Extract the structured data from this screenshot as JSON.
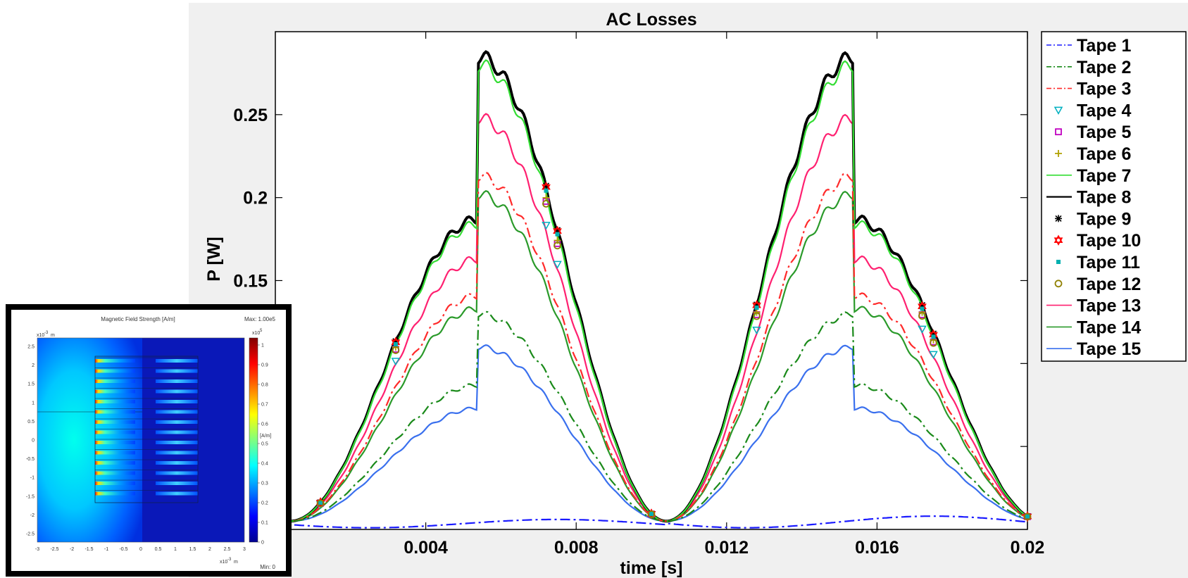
{
  "chart_data": {
    "type": "line",
    "title": "AC Losses",
    "xlabel": "time [s]",
    "ylabel": "P [W]",
    "xlim": [
      0,
      0.02
    ],
    "ylim": [
      0,
      0.3
    ],
    "xticks": [
      0.004,
      0.008,
      0.012,
      0.016,
      0.02
    ],
    "xtick_labels": [
      "0.004",
      "0.008",
      "0.012",
      "0.016",
      "0.02"
    ],
    "yticks": [
      0.15,
      0.2,
      0.25
    ],
    "ytick_labels": [
      "0.15",
      "0.2",
      "0.25"
    ],
    "grid": false,
    "legend": "outside-right",
    "series": [
      {
        "name": "Tape 1",
        "color": "#1a1aff",
        "style": "dashdot",
        "marker": "none",
        "peak1": 0.005,
        "peak2": 0.007
      },
      {
        "name": "Tape 2",
        "color": "#1a8a1a",
        "style": "dashdot",
        "marker": "none",
        "peak1": 0.087,
        "peak2": 0.13
      },
      {
        "name": "Tape 3",
        "color": "#ff2a2a",
        "style": "dashdot",
        "marker": "none",
        "peak1": 0.141,
        "peak2": 0.213
      },
      {
        "name": "Tape 4",
        "color": "#00b0c0",
        "style": "none",
        "marker": "triangle-down",
        "peak1": 0.166,
        "peak2": 0.253
      },
      {
        "name": "Tape 5",
        "color": "#c000c0",
        "style": "none",
        "marker": "square",
        "peak1": 0.178,
        "peak2": 0.273
      },
      {
        "name": "Tape 6",
        "color": "#b0a000",
        "style": "none",
        "marker": "plus",
        "peak1": 0.18,
        "peak2": 0.276
      },
      {
        "name": "Tape 7",
        "color": "#33dd33",
        "style": "solid",
        "marker": "none",
        "peak1": 0.184,
        "peak2": 0.28
      },
      {
        "name": "Tape 8",
        "color": "#000000",
        "style": "solid",
        "marker": "none",
        "peak1": 0.187,
        "peak2": 0.285
      },
      {
        "name": "Tape 9",
        "color": "#000000",
        "style": "none",
        "marker": "star",
        "peak1": 0.186,
        "peak2": 0.286
      },
      {
        "name": "Tape 10",
        "color": "#ff0000",
        "style": "none",
        "marker": "hexagram",
        "peak1": 0.185,
        "peak2": 0.285
      },
      {
        "name": "Tape 11",
        "color": "#00b0b0",
        "style": "none",
        "marker": "dot",
        "peak1": 0.183,
        "peak2": 0.282
      },
      {
        "name": "Tape 12",
        "color": "#908000",
        "style": "none",
        "marker": "circle",
        "peak1": 0.177,
        "peak2": 0.271
      },
      {
        "name": "Tape 13",
        "color": "#ff2070",
        "style": "solid",
        "marker": "none",
        "peak1": 0.163,
        "peak2": 0.248
      },
      {
        "name": "Tape 14",
        "color": "#2a9a2a",
        "style": "solid",
        "marker": "none",
        "peak1": 0.133,
        "peak2": 0.202
      },
      {
        "name": "Tape 15",
        "color": "#3a70ee",
        "style": "solid",
        "marker": "none",
        "peak1": 0.073,
        "peak2": 0.11
      }
    ]
  },
  "inset": {
    "title": "Magnetic Field Strength [A/m]",
    "max_label": "Max: 1.00e5",
    "min_label": "Min: 0",
    "colorbar_unit": "[A/m]",
    "colorbar_exp": "x10",
    "colorbar_exp_power": "5",
    "colorbar_ticks": [
      "1",
      "0.9",
      "0.8",
      "0.7",
      "0.6",
      "0.5",
      "0.4",
      "0.3",
      "0.2",
      "0.1",
      "0"
    ],
    "y_exp": "x10",
    "y_exp_power": "-3",
    "y_exp_unit": "m",
    "y_ticks": [
      "2.5",
      "2",
      "1.5",
      "1",
      "0.5",
      "0",
      "-0.5",
      "-1",
      "-1.5",
      "-2",
      "-2.5"
    ],
    "x_exp": "x10",
    "x_exp_power": "-3",
    "x_exp_unit": "m",
    "x_ticks": [
      "-3",
      "-2.5",
      "-2",
      "-1.5",
      "-1",
      "-0.5",
      "0",
      "0.5",
      "1",
      "1.5",
      "2",
      "2.5",
      "3"
    ]
  }
}
